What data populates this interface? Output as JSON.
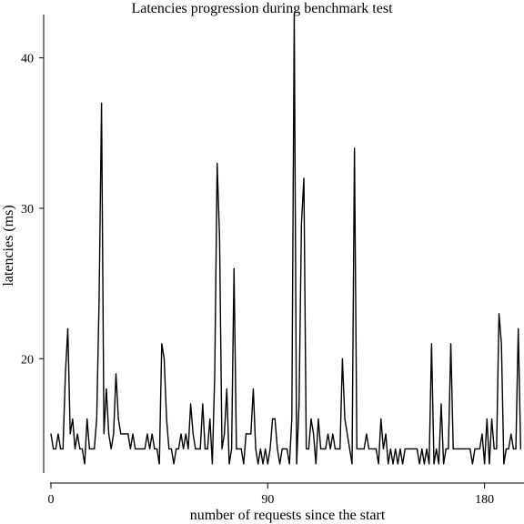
{
  "chart_data": {
    "type": "line",
    "title": "Latencies progression during benchmark test",
    "xlabel": "number of requests since the start",
    "ylabel": "latencies (ms)",
    "xlim": [
      0,
      196
    ],
    "ylim": [
      13,
      43
    ],
    "x_ticks": [
      0,
      90,
      180
    ],
    "y_ticks": [
      20,
      30,
      40
    ],
    "x_tick_labels": [
      "0",
      "90",
      "180"
    ],
    "y_tick_labels": [
      "20",
      "30",
      "40"
    ],
    "grid": false,
    "legend": "none",
    "line_color": "#000000",
    "series": [
      {
        "values": [
          15,
          14,
          14,
          15,
          14,
          14,
          19,
          22,
          15,
          16,
          14,
          15,
          14,
          14,
          13,
          16,
          14,
          14,
          14,
          16,
          24,
          37,
          15,
          18,
          15,
          14,
          15,
          19,
          16,
          15,
          15,
          15,
          15,
          14,
          15,
          14,
          14,
          14,
          14,
          14,
          15,
          14,
          15,
          14,
          14,
          13,
          21,
          20,
          16,
          14,
          14,
          13,
          14,
          14,
          15,
          14,
          15,
          14,
          17,
          15,
          14,
          14,
          14,
          17,
          14,
          14,
          16,
          13,
          19,
          33,
          28,
          14,
          15,
          18,
          13,
          14,
          26,
          14,
          14,
          14,
          13,
          15,
          15,
          15,
          18,
          14,
          13,
          14,
          13,
          14,
          13,
          14,
          16,
          16,
          14,
          13,
          14,
          14,
          14,
          13,
          16,
          43,
          13,
          17,
          29,
          32,
          14,
          14,
          16,
          15,
          13,
          16,
          14,
          14,
          14,
          15,
          14,
          15,
          14,
          14,
          14,
          20,
          16,
          15,
          14,
          13,
          34,
          14,
          14,
          14,
          14,
          15,
          14,
          14,
          14,
          14,
          13,
          16,
          14,
          15,
          13,
          14,
          13,
          14,
          13,
          14,
          13,
          14,
          14,
          14,
          14,
          14,
          14,
          13,
          14,
          13,
          14,
          13,
          21,
          13,
          14,
          13,
          17,
          13,
          14,
          14,
          21,
          14,
          14,
          14,
          14,
          14,
          14,
          14,
          14,
          13,
          14,
          14,
          14,
          15,
          13,
          16,
          13,
          16,
          14,
          14,
          23,
          21,
          13,
          14,
          14,
          15,
          14,
          14,
          22,
          14
        ]
      }
    ]
  }
}
